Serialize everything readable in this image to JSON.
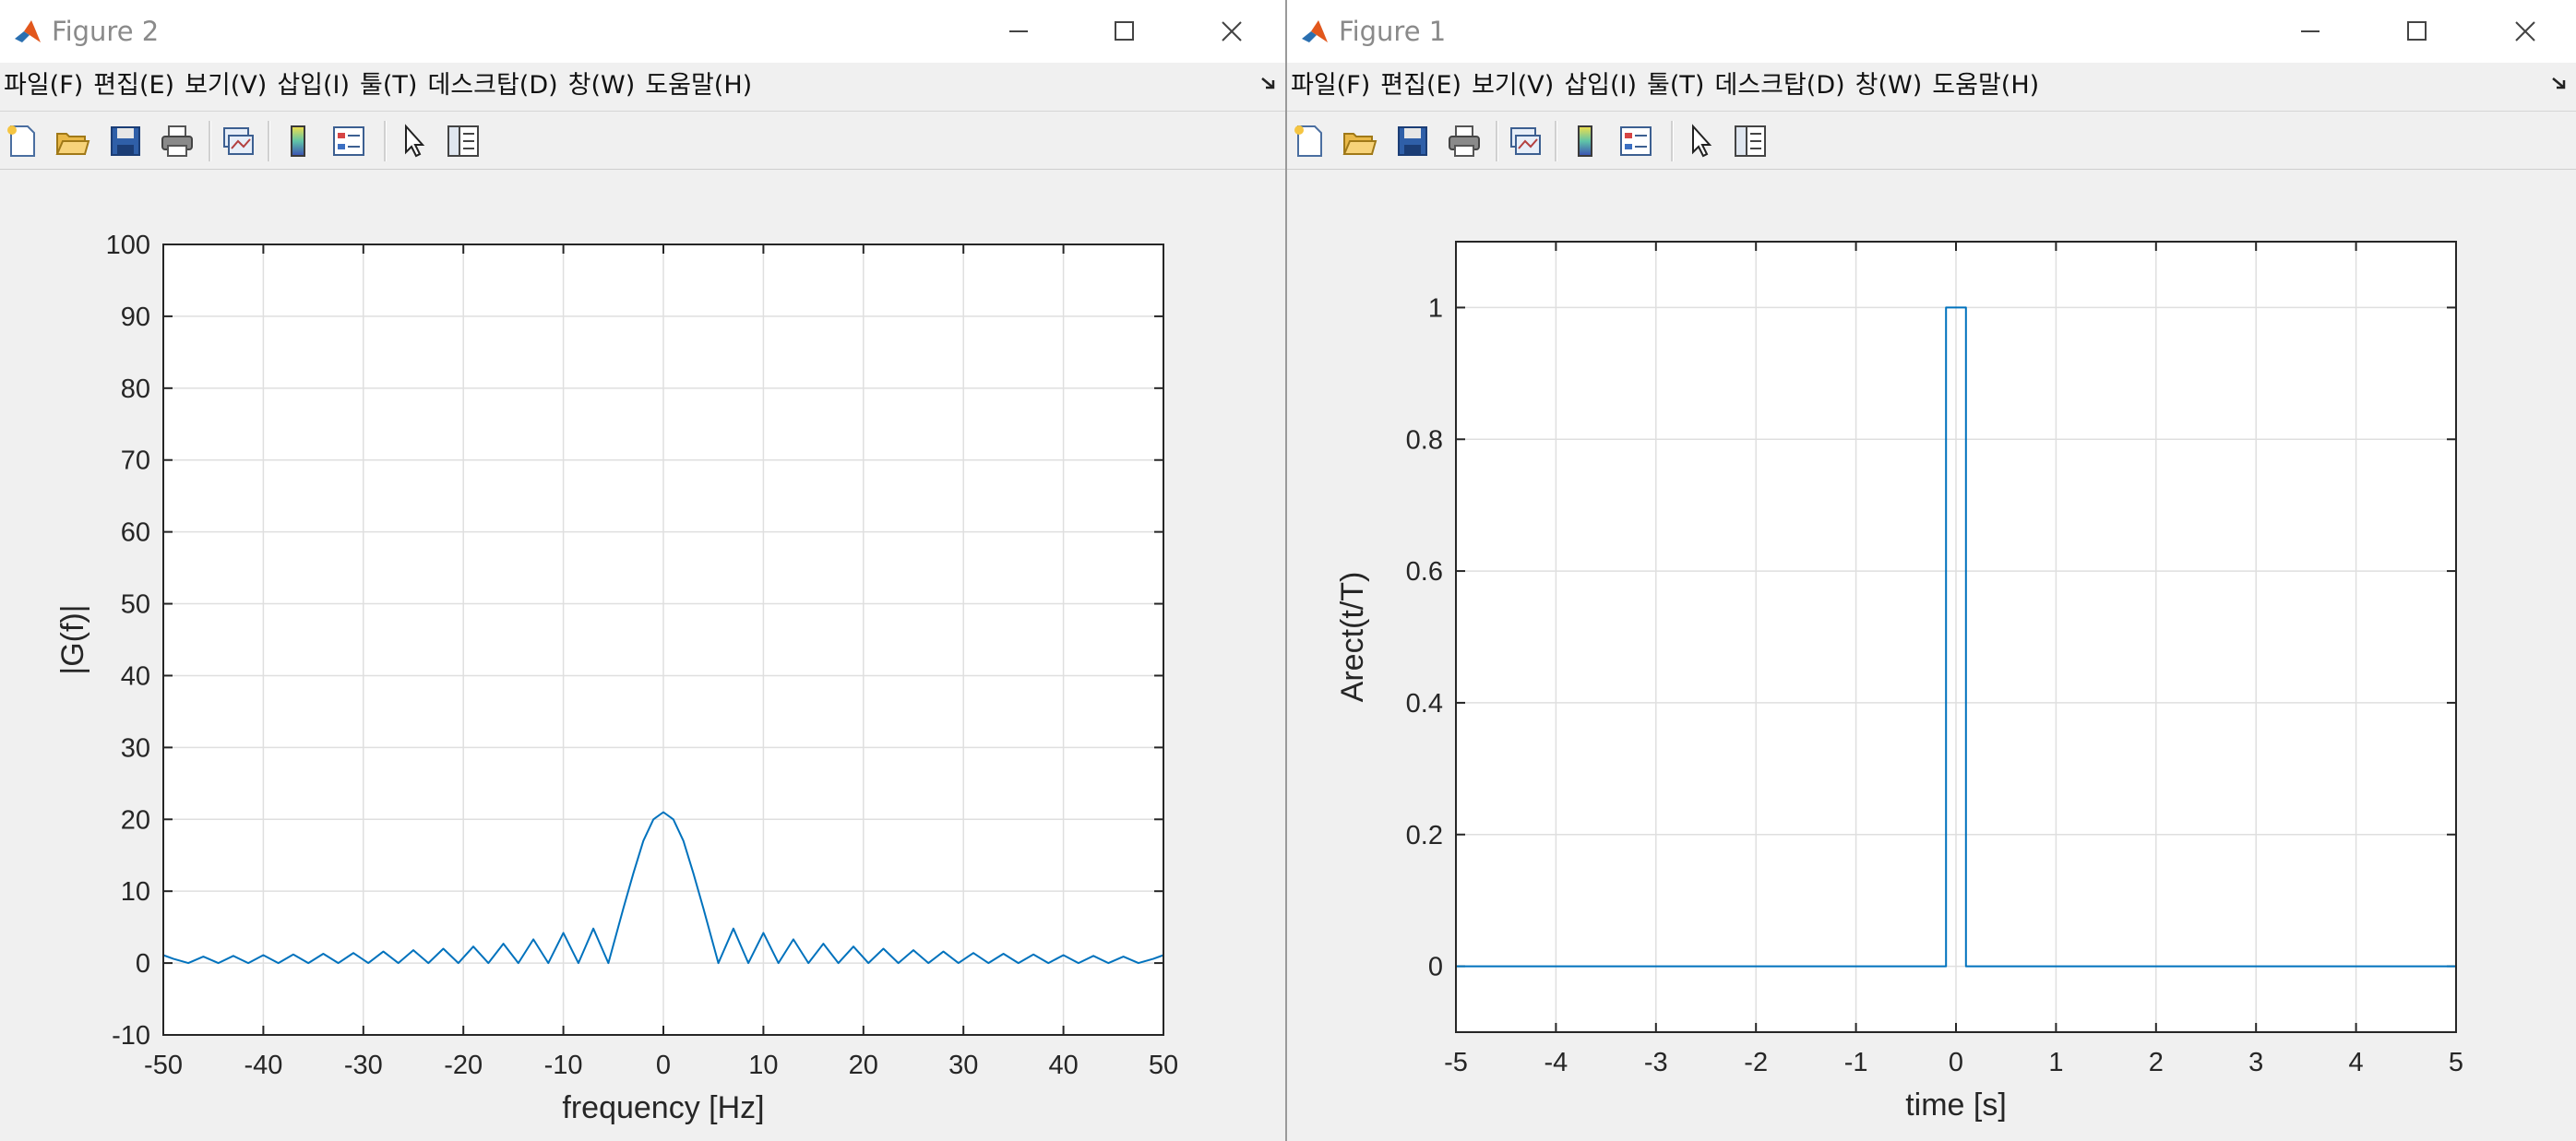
{
  "windows": [
    {
      "title": "Figure 2",
      "menu": [
        "파일(F)",
        "편집(E)",
        "보기(V)",
        "삽입(I)",
        "툴(T)",
        "데스크탑(D)",
        "창(W)",
        "도움말(H)"
      ],
      "toolbar_icons": [
        "new-figure-icon",
        "open-file-icon",
        "save-icon",
        "print-icon",
        "link-plot-icon",
        "colorbar-icon",
        "legend-icon",
        "edit-plot-pointer-icon",
        "property-inspector-icon"
      ],
      "chart_data": {
        "type": "line",
        "xlabel": "frequency [Hz]",
        "ylabel": "|G(f)|",
        "xlim": [
          -50,
          50
        ],
        "ylim": [
          -10,
          100
        ],
        "xticks": [
          "-50",
          "-40",
          "-30",
          "-20",
          "-10",
          "0",
          "10",
          "20",
          "30",
          "40",
          "50"
        ],
        "yticks": [
          "-10",
          "0",
          "10",
          "20",
          "30",
          "40",
          "50",
          "60",
          "70",
          "80",
          "90",
          "100"
        ],
        "grid": true,
        "color": "#0072bd",
        "series": [
          {
            "x": [
              -50,
              -49,
              -47.5,
              -46,
              -44.5,
              -43,
              -41.5,
              -40,
              -38.5,
              -37,
              -35.5,
              -34,
              -32.5,
              -31,
              -29.5,
              -28,
              -26.5,
              -25,
              -23.5,
              -22,
              -20.5,
              -19,
              -17.5,
              -16,
              -14.5,
              -13,
              -11.5,
              -10,
              -8.5,
              -7,
              -5.5,
              -4,
              -3,
              -2,
              -1,
              0,
              1,
              2,
              3,
              4,
              5.5,
              7,
              8.5,
              10,
              11.5,
              13,
              14.5,
              16,
              17.5,
              19,
              20.5,
              22,
              23.5,
              25,
              26.5,
              28,
              29.5,
              31,
              32.5,
              34,
              35.5,
              37,
              38.5,
              40,
              41.5,
              43,
              44.5,
              46,
              47.5,
              49,
              50
            ],
            "y": [
              1.1,
              0.6,
              0.0,
              0.9,
              0.0,
              1.0,
              0.0,
              1.1,
              0.0,
              1.2,
              0.0,
              1.3,
              0.0,
              1.4,
              0.0,
              1.6,
              0.0,
              1.8,
              0.0,
              2.0,
              0.0,
              2.3,
              0.0,
              2.7,
              0.0,
              3.3,
              0.0,
              4.2,
              0.0,
              4.8,
              0.0,
              7.6,
              12.5,
              17.0,
              20.0,
              21.0,
              20.0,
              17.0,
              12.5,
              7.6,
              0.0,
              4.8,
              0.0,
              4.2,
              0.0,
              3.3,
              0.0,
              2.7,
              0.0,
              2.3,
              0.0,
              2.0,
              0.0,
              1.8,
              0.0,
              1.6,
              0.0,
              1.4,
              0.0,
              1.3,
              0.0,
              1.2,
              0.0,
              1.1,
              0.0,
              1.0,
              0.0,
              0.9,
              0.0,
              0.6,
              1.1
            ]
          }
        ]
      }
    },
    {
      "title": "Figure 1",
      "menu": [
        "파일(F)",
        "편집(E)",
        "보기(V)",
        "삽입(I)",
        "툴(T)",
        "데스크탑(D)",
        "창(W)",
        "도움말(H)"
      ],
      "toolbar_icons": [
        "new-figure-icon",
        "open-file-icon",
        "save-icon",
        "print-icon",
        "link-plot-icon",
        "colorbar-icon",
        "legend-icon",
        "edit-plot-pointer-icon",
        "property-inspector-icon"
      ],
      "chart_data": {
        "type": "line",
        "xlabel": "time [s]",
        "ylabel": "Arect(t/T)",
        "xlim": [
          -5,
          5
        ],
        "ylim": [
          -0.1,
          1.1
        ],
        "xticks": [
          "-5",
          "-4",
          "-3",
          "-2",
          "-1",
          "0",
          "1",
          "2",
          "3",
          "4",
          "5"
        ],
        "yticks": [
          "0",
          "0.2",
          "0.4",
          "0.6",
          "0.8",
          "1"
        ],
        "grid": true,
        "color": "#0072bd",
        "series": [
          {
            "x": [
              -5,
              -0.1,
              -0.1,
              0.1,
              0.1,
              5
            ],
            "y": [
              0,
              0,
              1,
              1,
              0,
              0
            ]
          }
        ]
      }
    }
  ]
}
